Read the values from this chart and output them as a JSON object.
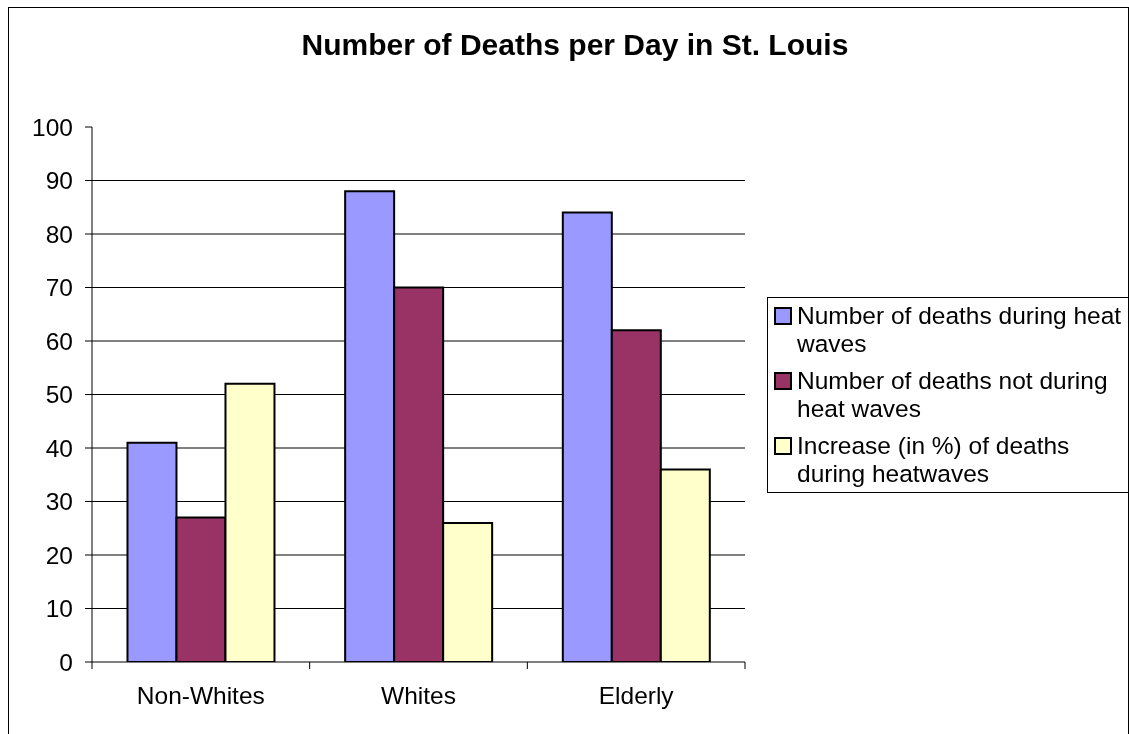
{
  "chart_data": {
    "type": "bar",
    "title": "Number of Deaths per Day in St. Louis",
    "categories": [
      "Non-Whites",
      "Whites",
      "Elderly"
    ],
    "series": [
      {
        "name": "Number of deaths during heat waves",
        "color": "#9999ff",
        "values": [
          41,
          88,
          84
        ]
      },
      {
        "name": "Number of deaths not during heat waves",
        "color": "#993366",
        "values": [
          27,
          70,
          62
        ]
      },
      {
        "name": "Increase (in %) of deaths during heatwaves",
        "color": "#ffffcc",
        "values": [
          52,
          26,
          36
        ]
      }
    ],
    "ylim": [
      0,
      100
    ],
    "yticks": [
      0,
      10,
      20,
      30,
      40,
      50,
      60,
      70,
      80,
      90,
      100
    ],
    "grid": "y",
    "legend": "right"
  }
}
